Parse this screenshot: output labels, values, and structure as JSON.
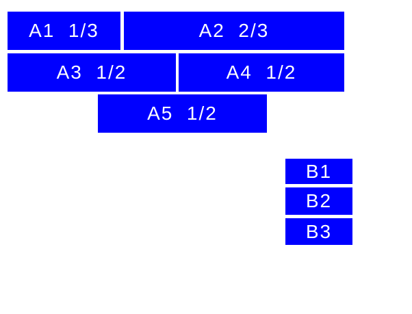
{
  "colors": {
    "page_background": "#ffffff",
    "box_background": "#0000ff",
    "box_text": "#ffffff"
  },
  "blocks": {
    "a1": {
      "label": "A1  1/3"
    },
    "a2": {
      "label": "A2  2/3"
    },
    "a3": {
      "label": "A3  1/2"
    },
    "a4": {
      "label": "A4  1/2"
    },
    "a5": {
      "label": "A5  1/2"
    },
    "b1": {
      "label": "B1"
    },
    "b2": {
      "label": "B2"
    },
    "b3": {
      "label": "B3"
    }
  }
}
